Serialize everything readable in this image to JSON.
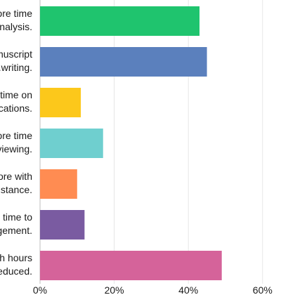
{
  "chart_data": {
    "type": "bar",
    "orientation": "horizontal",
    "categories": [
      [
        "...ore time",
        "...nalysis."
      ],
      [
        "...nuscript",
        "...writing."
      ],
      [
        "...time on",
        "...cations."
      ],
      [
        "...ore time",
        "...viewing."
      ],
      [
        "...ore with",
        "...stance."
      ],
      [
        "... time to",
        "...gement."
      ],
      [
        "...h hours",
        "...educed."
      ]
    ],
    "values": [
      43,
      45,
      11,
      17,
      10,
      12,
      49
    ],
    "colors": [
      "#1fc46e",
      "#5b80bd",
      "#fcc81b",
      "#6fcfcf",
      "#ff8c52",
      "#7a5ba1",
      "#d5639a"
    ],
    "xlim": [
      0,
      60
    ],
    "xticks": [
      "0%",
      "20%",
      "40%",
      "60%"
    ],
    "xtick_values": [
      0,
      20,
      40,
      60
    ],
    "grid": true,
    "title": "",
    "xlabel": "",
    "ylabel": ""
  }
}
